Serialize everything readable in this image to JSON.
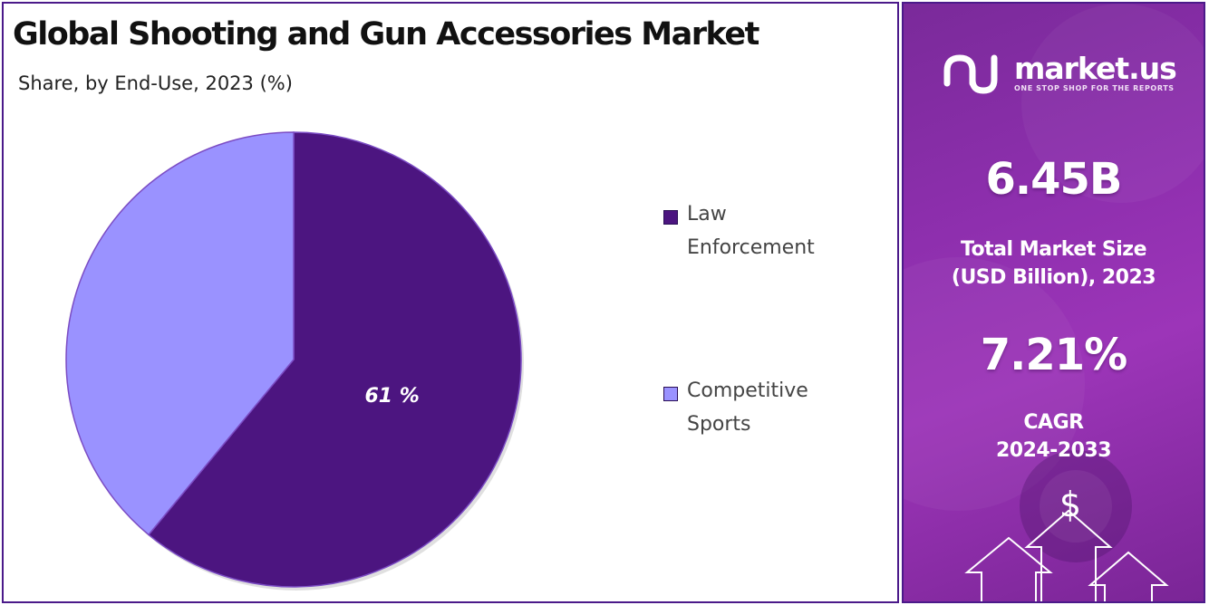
{
  "title": "Global Shooting and Gun Accessories Market",
  "subtitle": "Share, by End-Use, 2023 (%)",
  "chart_data": {
    "type": "pie",
    "title": "Global Shooting and Gun Accessories Market",
    "subtitle": "Share, by End-Use, 2023 (%)",
    "categories": [
      "Law Enforcement",
      "Competitive Sports"
    ],
    "values": [
      61,
      39
    ],
    "data_labels": [
      "61 %",
      ""
    ],
    "colors": [
      "#4c1580",
      "#9a92ff"
    ],
    "legend_position": "right"
  },
  "legend": [
    {
      "line1": "Law",
      "line2": "Enforcement",
      "color": "#4c1580"
    },
    {
      "line1": "Competitive",
      "line2": "Sports",
      "color": "#9a92ff"
    }
  ],
  "brand": {
    "name": "market.us",
    "tagline": "ONE STOP SHOP FOR THE REPORTS"
  },
  "stats": {
    "market_size_value": "6.45B",
    "market_size_label_1": "Total Market Size",
    "market_size_label_2": "(USD Billion), 2023",
    "cagr_value": "7.21%",
    "cagr_label_1": "CAGR",
    "cagr_label_2": "2024-2033"
  },
  "icons": {
    "currency_symbol": "$",
    "decor_icon": "growth-arrows-icon"
  }
}
